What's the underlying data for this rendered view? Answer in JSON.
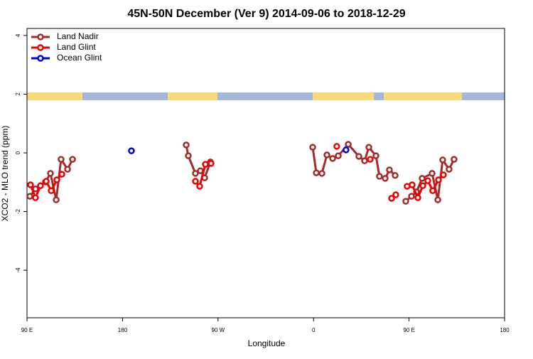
{
  "chart_data": {
    "type": "line",
    "title": "45N-50N December (Ver 9)   2014-09-06 to 2018-12-29",
    "x_label": "Longitude",
    "y_label": "XCO2 - MLO trend (ppm)",
    "xlim": [
      90,
      540
    ],
    "ylim": [
      -5.62,
      4.24
    ],
    "xticks": [
      {
        "value": 90,
        "label": "90 E"
      },
      180,
      {
        "value": 270,
        "label": "90 W"
      },
      {
        "value": 360,
        "label": "0"
      },
      {
        "value": 450,
        "label": "90 E"
      },
      {
        "value": 540,
        "label": "180"
      }
    ],
    "yticks": [
      -4,
      -2,
      0,
      2,
      4
    ],
    "legend": "top-left",
    "series": [
      {
        "name": "Land Nadir",
        "color": "#a52a2a",
        "x": [
          92.7,
          98.0,
          107.4,
          112.1,
          117.5,
          122.1,
          128.2,
          132.9,
          200,
          240.0,
          242.0,
          248.7,
          253.4,
          257.4,
          262.8,
          300,
          359.2,
          362.6,
          367.9,
          372.6,
          378.0,
          383.3,
          392.7,
          402.7,
          408.1,
          412.1,
          418.8,
          422.1,
          427.5,
          431.5,
          436.9,
          442,
          446.9,
          452.3,
          457.0,
          462.3,
          471.7,
          477.1,
          481.7,
          487.7,
          492.4
        ],
        "values": [
          -1.48,
          -1.23,
          -0.99,
          -0.7,
          -1.6,
          -0.22,
          -0.56,
          -0.22,
          null,
          0.27,
          -0.1,
          -0.7,
          -0.61,
          -0.85,
          -0.31,
          null,
          0.19,
          -0.68,
          -0.7,
          -0.07,
          -0.19,
          -0.1,
          0.29,
          -0.12,
          -0.27,
          0.19,
          -0.1,
          -0.8,
          -0.87,
          -0.58,
          -0.77,
          null,
          -1.65,
          -1.48,
          -1.33,
          -0.87,
          -0.7,
          -1.6,
          -0.24,
          -0.56,
          -0.22
        ]
      },
      {
        "name": "Land Glint",
        "color": "#ee0000",
        "x": [
          93.3,
          98.0,
          102.7,
          108.1,
          112.8,
          118.1,
          122.8,
          200,
          248.7,
          252.7,
          258.1,
          263.4,
          300,
          381.9,
          400,
          413.4,
          425,
          433.5,
          437.5,
          442,
          448.2,
          452.9,
          458.3,
          463.0,
          467.7,
          472.3,
          477.7,
          482.4
        ],
        "values": [
          -1.09,
          -1.53,
          -1.12,
          -0.97,
          -1.29,
          -0.92,
          -0.73,
          null,
          -0.97,
          -1.14,
          -0.39,
          -0.36,
          null,
          0.22,
          null,
          -0.22,
          null,
          -1.55,
          -1.43,
          null,
          -1.14,
          -1.09,
          -1.53,
          -1.12,
          -0.95,
          -1.29,
          -0.92,
          -0.75
        ]
      },
      {
        "name": "Ocean Glint",
        "color": "#0000dd",
        "x": [
          188.4,
          300,
          390.6
        ],
        "values": [
          0.07,
          null,
          0.1
        ]
      }
    ]
  }
}
